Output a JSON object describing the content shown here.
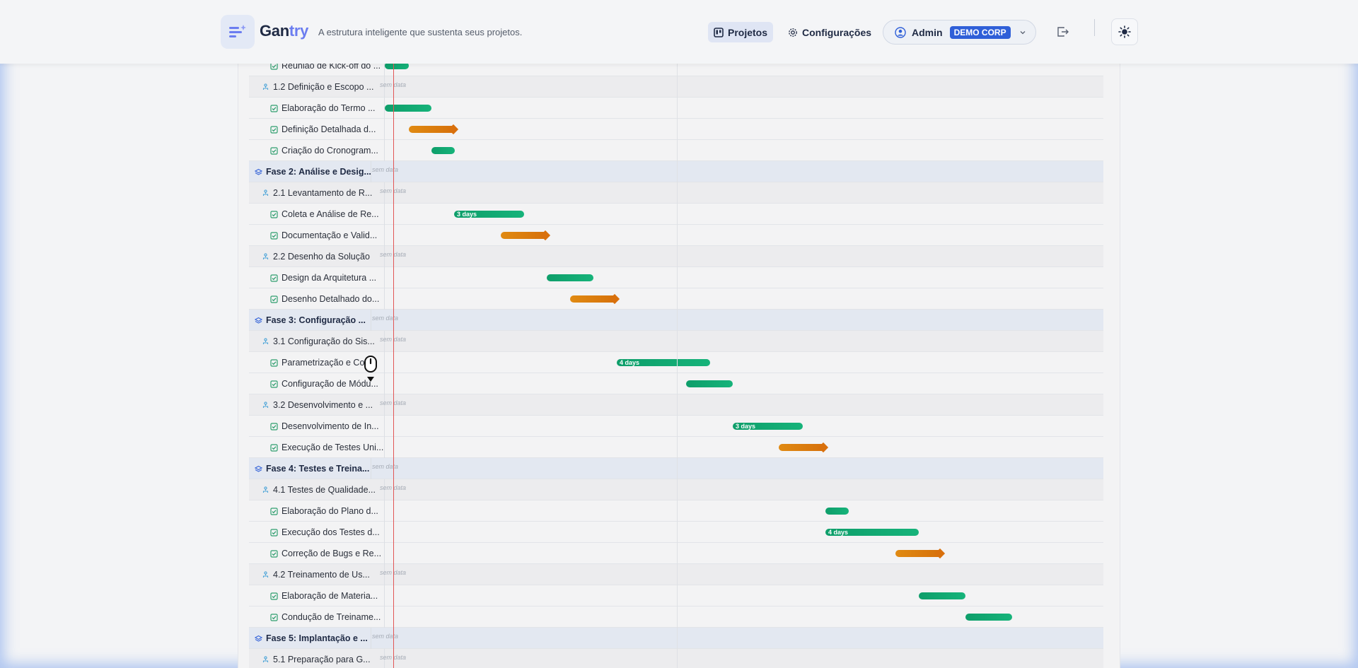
{
  "header": {
    "brand_part1": "Gan",
    "brand_part2": "try",
    "tagline": "A estrutura inteligente que sustenta seus projetos.",
    "nav_projects": "Projetos",
    "nav_settings": "Configurações",
    "user_name": "Admin",
    "org_badge": "DEMO CORP"
  },
  "gantt": {
    "no_date_text": "sem data",
    "rows": [
      {
        "type": "task",
        "label": "Reunião de Kick-off do ...",
        "bar": "green",
        "bar_text": ""
      },
      {
        "type": "group",
        "label": "1.2 Definição e Escopo ..."
      },
      {
        "type": "task",
        "label": "Elaboração do Termo ...",
        "bar": "green",
        "bar_text": ""
      },
      {
        "type": "task",
        "label": "Definição Detalhada d...",
        "bar": "orange",
        "bar_text": ""
      },
      {
        "type": "task",
        "label": "Criação do Cronogram...",
        "bar": "green",
        "bar_text": ""
      },
      {
        "type": "phase",
        "label": "Fase 2: Análise e Desig..."
      },
      {
        "type": "group",
        "label": "2.1 Levantamento de R..."
      },
      {
        "type": "task",
        "label": "Coleta e Análise de Re...",
        "bar": "green",
        "bar_text": "3 days"
      },
      {
        "type": "task",
        "label": "Documentação e Valid...",
        "bar": "orange",
        "bar_text": ""
      },
      {
        "type": "group",
        "label": "2.2 Desenho da Solução"
      },
      {
        "type": "task",
        "label": "Design da Arquitetura ...",
        "bar": "green",
        "bar_text": ""
      },
      {
        "type": "task",
        "label": "Desenho Detalhado do...",
        "bar": "orange",
        "bar_text": ""
      },
      {
        "type": "phase",
        "label": "Fase 3: Configuração ..."
      },
      {
        "type": "group",
        "label": "3.1 Configuração do Sis..."
      },
      {
        "type": "task",
        "label": "Parametrização e Co...",
        "bar": "green",
        "bar_text": "4 days"
      },
      {
        "type": "task",
        "label": "Configuração de Módu...",
        "bar": "green",
        "bar_text": ""
      },
      {
        "type": "group",
        "label": "3.2 Desenvolvimento e ..."
      },
      {
        "type": "task",
        "label": "Desenvolvimento de In...",
        "bar": "green",
        "bar_text": "3 days"
      },
      {
        "type": "task",
        "label": "Execução de Testes Uni...",
        "bar": "orange",
        "bar_text": ""
      },
      {
        "type": "phase",
        "label": "Fase 4: Testes e Treina..."
      },
      {
        "type": "group",
        "label": "4.1 Testes de Qualidade..."
      },
      {
        "type": "task",
        "label": "Elaboração do Plano d...",
        "bar": "green",
        "bar_text": ""
      },
      {
        "type": "task",
        "label": "Execução dos Testes d...",
        "bar": "green",
        "bar_text": "4 days"
      },
      {
        "type": "task",
        "label": "Correção de Bugs e Re...",
        "bar": "orange",
        "bar_text": ""
      },
      {
        "type": "group",
        "label": "4.2 Treinamento de Us..."
      },
      {
        "type": "task",
        "label": "Elaboração de Materia...",
        "bar": "green",
        "bar_text": ""
      },
      {
        "type": "task",
        "label": "Condução de Treiname...",
        "bar": "green",
        "bar_text": ""
      },
      {
        "type": "phase",
        "label": "Fase 5: Implantação e ..."
      },
      {
        "type": "group",
        "label": "5.1 Preparação para G..."
      }
    ]
  },
  "colors": {
    "accent": "#2f5fd8",
    "bar_green": "#12a873",
    "bar_orange": "#d9700c",
    "today_line": "#e25656"
  }
}
